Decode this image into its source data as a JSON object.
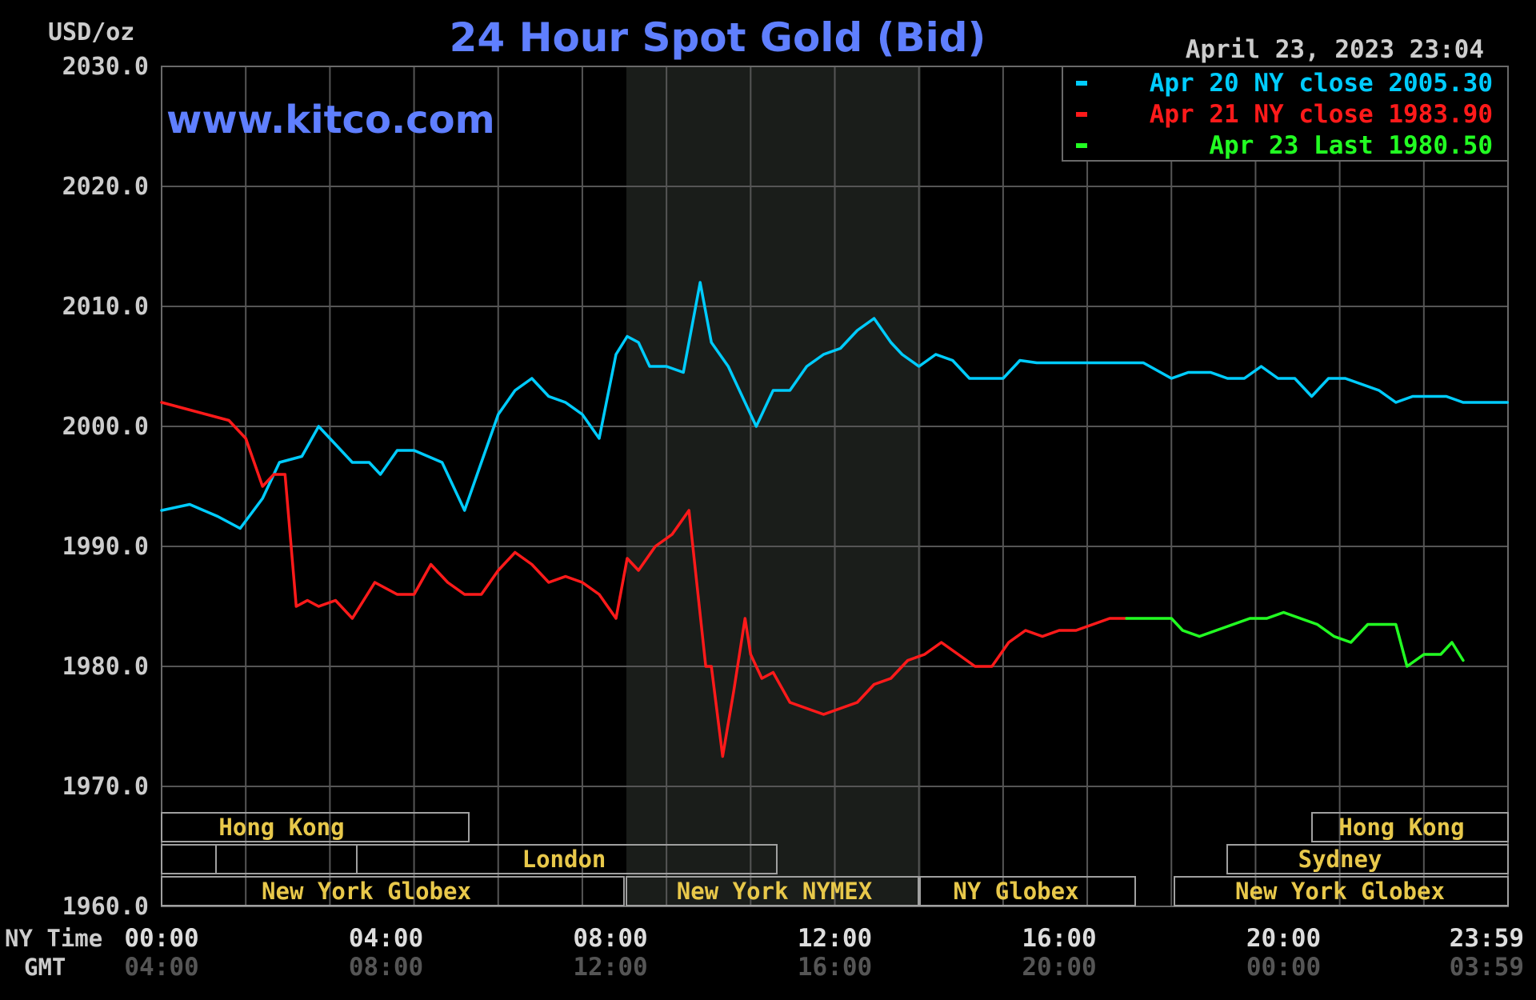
{
  "chart_data": {
    "type": "line",
    "title": "24 Hour Spot Gold (Bid)",
    "unit_label": "USD/oz",
    "date_stamp": "April 23, 2023 23:04",
    "watermark": "www.kitco.com",
    "ylim": [
      1960,
      2030
    ],
    "y_ticks": [
      "2030.0",
      "2020.0",
      "2010.0",
      "2000.0",
      "1990.0",
      "1980.0",
      "1970.0",
      "1960.0"
    ],
    "x_row_labels": {
      "ny": "NY Time",
      "gmt": "GMT"
    },
    "x_ticks_ny": [
      "00:00",
      "04:00",
      "08:00",
      "12:00",
      "16:00",
      "20:00",
      "23:59"
    ],
    "x_ticks_gmt": [
      "04:00",
      "08:00",
      "12:00",
      "16:00",
      "20:00",
      "00:00",
      "03:59"
    ],
    "legend_position": "top-right",
    "legend": [
      {
        "label": "Apr 20 NY close 2005.30",
        "color": "#00ccff"
      },
      {
        "label": "Apr 21 NY close 1983.90",
        "color": "#ff1a1a"
      },
      {
        "label": "Apr 23 Last 1980.50",
        "color": "#22ff22"
      }
    ],
    "sessions": {
      "hong_kong": "Hong Kong",
      "london": "London",
      "new_york_globex": "New York Globex",
      "new_york_nymex": "New York NYMEX",
      "ny_globex": "NY Globex",
      "sydney": "Sydney"
    },
    "series": [
      {
        "name": "Apr 20 NY close 2005.30",
        "color": "#00ccff",
        "x_hours": [
          0,
          0.5,
          1,
          1.4,
          1.8,
          2.1,
          2.5,
          2.8,
          3.1,
          3.4,
          3.7,
          3.9,
          4.2,
          4.5,
          5,
          5.4,
          5.7,
          6,
          6.3,
          6.6,
          6.9,
          7.2,
          7.5,
          7.8,
          8.1,
          8.3,
          8.5,
          8.7,
          9,
          9.3,
          9.6,
          9.8,
          10.1,
          10.3,
          10.6,
          10.9,
          11.2,
          11.5,
          11.8,
          12.1,
          12.4,
          12.7,
          13,
          13.2,
          13.5,
          13.8,
          14.1,
          14.4,
          14.7,
          15,
          15.3,
          15.6,
          15.9,
          16.2,
          16.5,
          17,
          17.5,
          18,
          18.3,
          18.7,
          19,
          19.3,
          19.6,
          19.9,
          20.2,
          20.5,
          20.8,
          21.1,
          21.4,
          21.7,
          22,
          22.3,
          22.6,
          22.9,
          23.2,
          23.5,
          23.99
        ],
        "y_values": [
          1993,
          1993.5,
          1992.5,
          1991.5,
          1994,
          1997,
          1997.5,
          2000,
          1998.5,
          1997,
          1997,
          1996,
          1998,
          1998,
          1997,
          1993,
          1997,
          2001,
          2003,
          2004,
          2002.5,
          2002,
          2001,
          1999,
          2006,
          2007.5,
          2007,
          2005,
          2005,
          2004.5,
          2012,
          2007,
          2005,
          2003,
          2000,
          2003,
          2003,
          2005,
          2006,
          2006.5,
          2008,
          2009,
          2007,
          2006,
          2005,
          2006,
          2005.5,
          2004,
          2004,
          2004,
          2005.5,
          2005.3,
          2005.3,
          2005.3,
          2005.3,
          2005.3,
          2005.3,
          2004,
          2004.5,
          2004.5,
          2004,
          2004,
          2005,
          2004,
          2004,
          2002.5,
          2004,
          2004,
          2003.5,
          2003,
          2002,
          2002.5,
          2002.5,
          2002.5,
          2002,
          2002,
          2002
        ]
      },
      {
        "name": "Apr 21 NY close 1983.90",
        "color": "#ff1a1a",
        "x_hours": [
          0,
          0.4,
          0.8,
          1.2,
          1.5,
          1.8,
          2,
          2.2,
          2.4,
          2.6,
          2.8,
          3.1,
          3.4,
          3.8,
          4.2,
          4.5,
          4.8,
          5.1,
          5.4,
          5.7,
          6,
          6.3,
          6.6,
          6.9,
          7.2,
          7.5,
          7.8,
          8.1,
          8.3,
          8.5,
          8.8,
          9.1,
          9.4,
          9.7,
          9.8,
          10,
          10.2,
          10.4,
          10.5,
          10.7,
          10.9,
          11.2,
          11.5,
          11.8,
          12.1,
          12.4,
          12.7,
          13,
          13.3,
          13.6,
          13.9,
          14.2,
          14.5,
          14.8,
          15.1,
          15.4,
          15.7,
          16,
          16.3,
          16.6,
          16.9,
          17.2
        ],
        "y_values": [
          2002,
          2001.5,
          2001,
          2000.5,
          1999,
          1995,
          1996,
          1996,
          1985,
          1985.5,
          1985,
          1985.5,
          1984,
          1987,
          1986,
          1986,
          1988.5,
          1987,
          1986,
          1986,
          1988,
          1989.5,
          1988.5,
          1987,
          1987.5,
          1987,
          1986,
          1984,
          1989,
          1988,
          1990,
          1991,
          1993,
          1980,
          1980,
          1972.5,
          1978,
          1984,
          1981,
          1979,
          1979.5,
          1977,
          1976.5,
          1976,
          1976.5,
          1977,
          1978.5,
          1979,
          1980.5,
          1981,
          1982,
          1981,
          1980,
          1980,
          1982,
          1983,
          1982.5,
          1983,
          1983,
          1983.5,
          1984,
          1984
        ]
      },
      {
        "name": "Apr 23 Last 1980.50",
        "color": "#22ff22",
        "x_hours": [
          17.2,
          17.6,
          18,
          18.2,
          18.5,
          18.8,
          19.1,
          19.4,
          19.7,
          20,
          20.3,
          20.6,
          20.9,
          21.2,
          21.5,
          21.8,
          22,
          22.2,
          22.5,
          22.8,
          23,
          23.2
        ],
        "y_values": [
          1984,
          1984,
          1984,
          1983,
          1982.5,
          1983,
          1983.5,
          1984,
          1984,
          1984.5,
          1984,
          1983.5,
          1982.5,
          1982,
          1983.5,
          1983.5,
          1983.5,
          1980,
          1981,
          1981,
          1982,
          1980.5
        ]
      }
    ]
  }
}
